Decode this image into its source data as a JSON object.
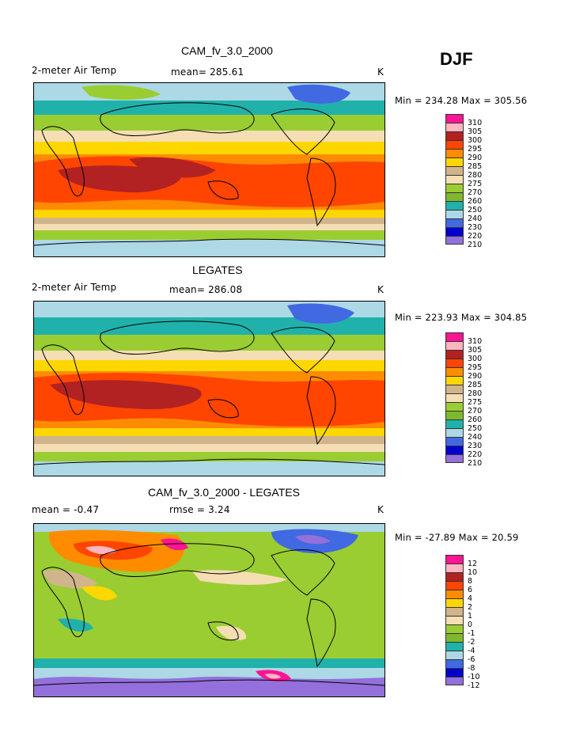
{
  "season": "DJF",
  "panels": [
    {
      "title": "CAM_fv_3.0_2000",
      "left_label": "2-meter Air Temp",
      "center_label": "mean= 285.61",
      "right_label": "K",
      "minmax": "Min = 234.28 Max = 305.56",
      "legend_labels": [
        "310",
        "305",
        "300",
        "295",
        "290",
        "285",
        "280",
        "275",
        "270",
        "260",
        "250",
        "240",
        "230",
        "220",
        "210"
      ]
    },
    {
      "title": "LEGATES",
      "left_label": "2-meter Air Temp",
      "center_label": "mean= 286.08",
      "right_label": "K",
      "minmax": "Min = 223.93 Max = 304.85",
      "legend_labels": [
        "310",
        "305",
        "300",
        "295",
        "290",
        "285",
        "280",
        "275",
        "270",
        "260",
        "250",
        "240",
        "230",
        "220",
        "210"
      ]
    },
    {
      "title": "CAM_fv_3.0_2000 - LEGATES",
      "left_label": "mean =   -0.47",
      "center_label": "rmse =    3.24",
      "right_label": "K",
      "minmax": "Min = -27.89 Max =   20.59",
      "legend_labels": [
        "12",
        "10",
        "8",
        "6",
        "4",
        "2",
        "1",
        "0",
        "-1",
        "-2",
        "-4",
        "-6",
        "-8",
        "-10",
        "-12"
      ]
    }
  ],
  "colors": {
    "scale": [
      "#ff1493",
      "#ffb6c1",
      "#b22222",
      "#ff4500",
      "#ff8c00",
      "#ffd700",
      "#d2b48c",
      "#f5deb3",
      "#9acd32",
      "#7fb82e",
      "#20b2aa",
      "#add8e6",
      "#4169e1",
      "#0000cd",
      "#9370db"
    ],
    "land_border": "#000000"
  }
}
